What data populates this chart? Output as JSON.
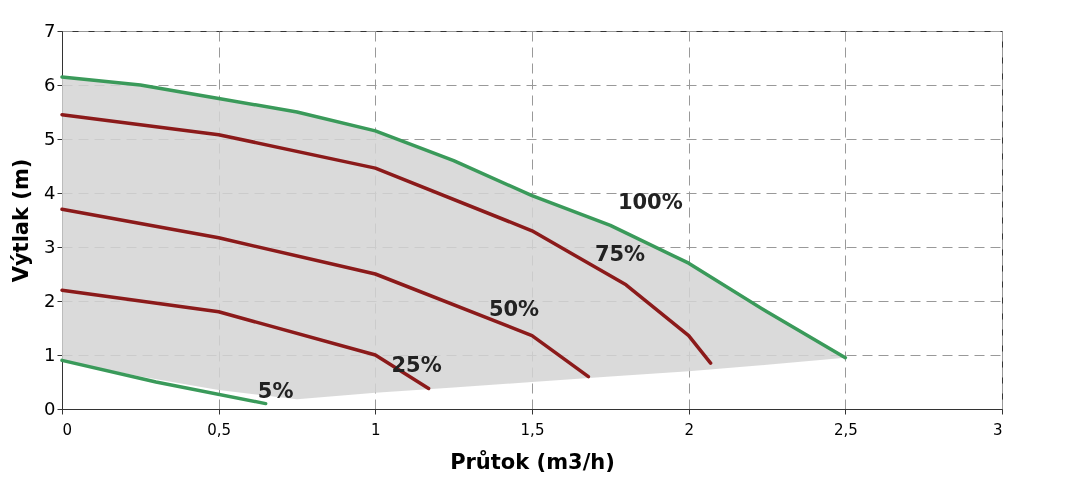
{
  "chart_data": {
    "type": "line",
    "xlabel": "Průtok (m3/h)",
    "ylabel": "Výtlak (m)",
    "xlim": [
      0,
      3
    ],
    "ylim": [
      0,
      7
    ],
    "xticks": [
      0,
      {
        "value": 0.5,
        "label": "0,5"
      },
      1,
      {
        "value": 1.5,
        "label": "1,5"
      },
      2,
      {
        "value": 2.5,
        "label": "2,5"
      },
      3
    ],
    "yticks": [
      0,
      1,
      2,
      3,
      4,
      5,
      6,
      7
    ],
    "grid": true,
    "line_style": "solid",
    "series": [
      {
        "name": "100%",
        "color": "#3a9a5a",
        "x": [
          0,
          0.25,
          0.5,
          0.75,
          1,
          1.25,
          1.5,
          1.75,
          2,
          2.25,
          2.5
        ],
        "values": [
          6.15,
          6.0,
          5.75,
          5.5,
          5.15,
          4.6,
          3.95,
          3.4,
          2.7,
          1.8,
          0.95
        ],
        "lower": [
          0.9,
          0.6,
          0.35,
          0.18,
          0.3,
          0.4,
          0.5,
          0.6,
          0.7,
          0.82,
          0.95
        ],
        "upper": [
          6.15,
          6.0,
          5.75,
          5.5,
          5.15,
          4.6,
          3.95,
          3.4,
          2.7,
          1.8,
          0.95
        ]
      },
      {
        "name": "75%",
        "color": "#8b1a1a",
        "x": [
          0,
          0.5,
          1,
          1.5,
          1.8,
          2,
          2.07
        ],
        "values": [
          5.45,
          5.08,
          4.46,
          3.3,
          2.3,
          1.36,
          0.85
        ]
      },
      {
        "name": "50%",
        "color": "#8b1a1a",
        "x": [
          0,
          0.5,
          1,
          1.5,
          1.68
        ],
        "values": [
          3.7,
          3.17,
          2.5,
          1.36,
          0.6
        ]
      },
      {
        "name": "25%",
        "color": "#8b1a1a",
        "x": [
          0,
          0.5,
          1,
          1.17
        ],
        "values": [
          2.2,
          1.8,
          1.0,
          0.38
        ]
      },
      {
        "name": "5%",
        "color": "#3a9a5a",
        "x": [
          0,
          0.3,
          0.65
        ],
        "values": [
          0.9,
          0.5,
          0.1
        ]
      }
    ]
  }
}
